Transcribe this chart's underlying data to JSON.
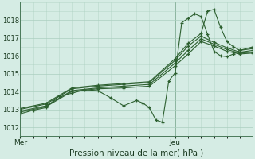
{
  "xlabel": "Pression niveau de la mer( hPa )",
  "background_color": "#d5ece4",
  "grid_color": "#aacfbf",
  "line_color": "#2d6030",
  "ylim": [
    1011.5,
    1019.0
  ],
  "yticks": [
    1012,
    1013,
    1014,
    1015,
    1016,
    1017,
    1018
  ],
  "xlim": [
    0,
    72
  ],
  "x_mer": 0.0,
  "x_jeu": 48.0,
  "xtick_labels": [
    "Mer",
    "Jeu"
  ],
  "xtick_positions": [
    0.0,
    48.0
  ],
  "lines": [
    [
      0,
      1012.75,
      4,
      1012.95,
      8,
      1013.1,
      12,
      1013.75,
      16,
      1013.9,
      20,
      1014.1,
      24,
      1014.05,
      28,
      1013.65,
      32,
      1013.2,
      36,
      1013.5,
      38,
      1013.35,
      40,
      1013.1,
      42,
      1012.4,
      44,
      1012.28,
      46,
      1014.6,
      48,
      1015.05,
      50,
      1017.85,
      52,
      1018.1,
      54,
      1018.35,
      56,
      1018.2,
      58,
      1017.2,
      60,
      1016.25,
      62,
      1016.0,
      64,
      1015.95,
      66,
      1016.1,
      68,
      1016.3,
      72,
      1016.5
    ],
    [
      0,
      1012.85,
      8,
      1013.15,
      16,
      1014.0,
      24,
      1014.15,
      32,
      1014.2,
      40,
      1014.3,
      48,
      1015.45,
      52,
      1016.1,
      56,
      1016.8,
      60,
      1016.55,
      64,
      1016.25,
      68,
      1016.1,
      72,
      1016.15
    ],
    [
      0,
      1012.9,
      8,
      1013.2,
      16,
      1014.05,
      24,
      1014.2,
      32,
      1014.3,
      40,
      1014.4,
      48,
      1015.6,
      52,
      1016.3,
      56,
      1016.95,
      60,
      1016.65,
      64,
      1016.35,
      68,
      1016.15,
      72,
      1016.2
    ],
    [
      0,
      1013.0,
      8,
      1013.3,
      16,
      1014.15,
      24,
      1014.3,
      32,
      1014.4,
      40,
      1014.5,
      48,
      1015.75,
      52,
      1016.55,
      56,
      1017.1,
      60,
      1016.75,
      64,
      1016.45,
      68,
      1016.2,
      72,
      1016.3
    ],
    [
      0,
      1013.05,
      8,
      1013.35,
      16,
      1014.2,
      24,
      1014.35,
      32,
      1014.45,
      40,
      1014.55,
      48,
      1015.85,
      52,
      1016.7,
      56,
      1017.25,
      58,
      1018.5,
      60,
      1018.6,
      62,
      1017.6,
      64,
      1016.8,
      66,
      1016.5,
      68,
      1016.3,
      72,
      1016.4
    ]
  ]
}
